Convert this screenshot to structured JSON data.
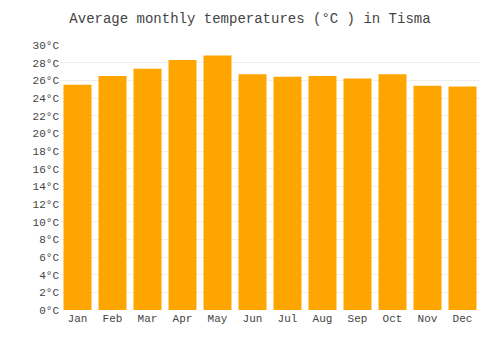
{
  "chart_data": {
    "type": "bar",
    "title": "Average monthly temperatures (°C ) in Tisma",
    "categories": [
      "Jan",
      "Feb",
      "Mar",
      "Apr",
      "May",
      "Jun",
      "Jul",
      "Aug",
      "Sep",
      "Oct",
      "Nov",
      "Dec"
    ],
    "values": [
      25.5,
      26.5,
      27.3,
      28.3,
      28.8,
      26.7,
      26.4,
      26.5,
      26.2,
      26.7,
      25.4,
      25.3
    ],
    "color": "#FFA500",
    "ylim": [
      0,
      30
    ],
    "yticks": [
      {
        "value": 0,
        "label": "0°C"
      },
      {
        "value": 2,
        "label": "2°C"
      },
      {
        "value": 4,
        "label": "4°C"
      },
      {
        "value": 6,
        "label": "6°C"
      },
      {
        "value": 8,
        "label": "8°C"
      },
      {
        "value": 10,
        "label": "10°C"
      },
      {
        "value": 12,
        "label": "12°C"
      },
      {
        "value": 14,
        "label": "14°C"
      },
      {
        "value": 16,
        "label": "16°C"
      },
      {
        "value": 18,
        "label": "18°C"
      },
      {
        "value": 20,
        "label": "20°C"
      },
      {
        "value": 22,
        "label": "22°C"
      },
      {
        "value": 24,
        "label": "24°C"
      },
      {
        "value": 26,
        "label": "26°C"
      },
      {
        "value": 28,
        "label": "28°C"
      },
      {
        "value": 30,
        "label": "30°C"
      }
    ],
    "grid": true
  }
}
